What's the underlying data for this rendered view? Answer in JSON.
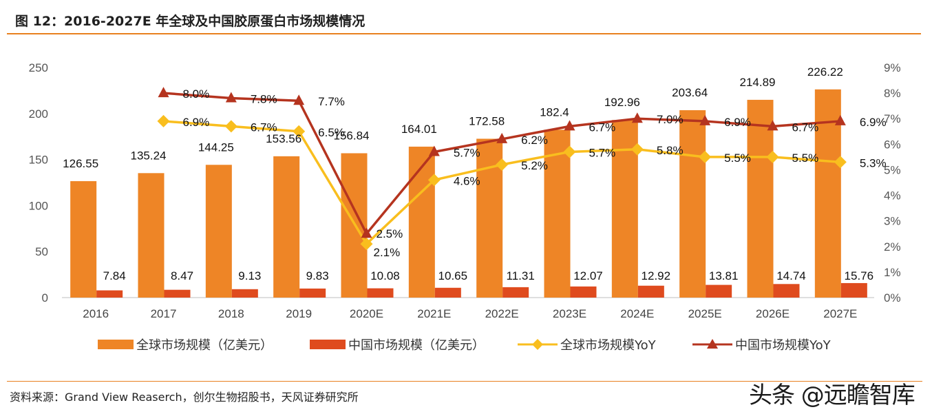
{
  "header": {
    "title": "图 12：2016-2027E 年全球及中国胶原蛋白市场规模情况"
  },
  "footer": {
    "source": "资料来源：Grand View Reaserch，创尔生物招股书，天风证券研究所",
    "watermark": "头条 @远瞻智库"
  },
  "colors": {
    "global_bar": "#ee8526",
    "china_bar": "#df4b1e",
    "global_yoy": "#f9be1e",
    "china_yoy": "#b5341f",
    "accent_rule": "#e8801e"
  },
  "chart_data": {
    "type": "bar",
    "categories": [
      "2016",
      "2017",
      "2018",
      "2019",
      "2020E",
      "2021E",
      "2022E",
      "2023E",
      "2024E",
      "2025E",
      "2026E",
      "2027E"
    ],
    "series": [
      {
        "name": "全球市场规模（亿美元）",
        "type": "bar",
        "axis": "left",
        "values": [
          126.55,
          135.24,
          144.25,
          153.56,
          156.84,
          164.01,
          172.58,
          182.4,
          192.96,
          203.64,
          214.89,
          226.22
        ],
        "labels": [
          "126.55",
          "135.24",
          "144.25",
          "153.56",
          "156.84",
          "164.01",
          "172.58",
          "182.4",
          "192.96",
          "203.64",
          "214.89",
          "226.22"
        ]
      },
      {
        "name": "中国市场规模（亿美元）",
        "type": "bar",
        "axis": "left",
        "values": [
          7.84,
          8.47,
          9.13,
          9.83,
          10.08,
          10.65,
          11.31,
          12.07,
          12.92,
          13.81,
          14.74,
          15.76
        ],
        "labels": [
          "7.84",
          "8.47",
          "9.13",
          "9.83",
          "10.08",
          "10.65",
          "11.31",
          "12.07",
          "12.92",
          "13.81",
          "14.74",
          "15.76"
        ]
      },
      {
        "name": "全球市场规模YoY",
        "type": "line",
        "axis": "right",
        "marker": "diamond",
        "values": [
          null,
          6.9,
          6.7,
          6.5,
          2.1,
          4.6,
          5.2,
          5.7,
          5.8,
          5.5,
          5.5,
          5.3
        ],
        "labels": [
          "",
          "6.9%",
          "6.7%",
          "6.5%",
          "2.1%",
          "4.6%",
          "5.2%",
          "5.7%",
          "5.8%",
          "5.5%",
          "5.5%",
          "5.3%"
        ]
      },
      {
        "name": "中国市场规模YoY",
        "type": "line",
        "axis": "right",
        "marker": "triangle",
        "values": [
          null,
          8.0,
          7.8,
          7.7,
          2.5,
          5.7,
          6.2,
          6.7,
          7.0,
          6.9,
          6.7,
          6.9
        ],
        "labels": [
          "",
          "8.0%",
          "7.8%",
          "7.7%",
          "2.5%",
          "5.7%",
          "6.2%",
          "6.7%",
          "7.0%",
          "6.9%",
          "6.7%",
          "6.9%"
        ]
      }
    ],
    "y_left": {
      "min": 0,
      "max": 250,
      "ticks": [
        "0",
        "50",
        "100",
        "150",
        "200",
        "250"
      ]
    },
    "y_right": {
      "min": 0,
      "max": 9,
      "unit": "%",
      "ticks": [
        "0%",
        "1%",
        "2%",
        "3%",
        "4%",
        "5%",
        "6%",
        "7%",
        "8%",
        "9%"
      ]
    },
    "grid": false,
    "legend": "bottom",
    "title": "2016-2027E 年全球及中国胶原蛋白市场规模情况"
  }
}
